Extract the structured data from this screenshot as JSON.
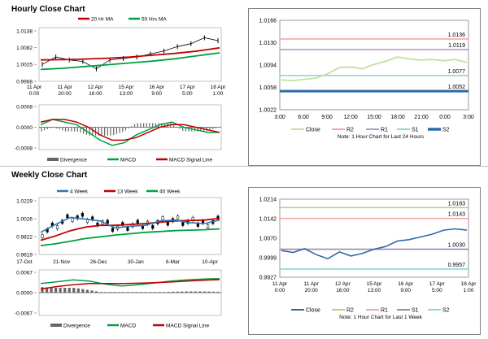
{
  "sections": {
    "hourly_title": "Hourly Close Chart",
    "weekly_title": "Weekly Close Chart"
  },
  "colors": {
    "ma_short": "#c00000",
    "ma_mid": "#00a040",
    "blue": "#2e75b6",
    "close_line": "#c4dfa0",
    "r2": "#f4a6a6",
    "r1": "#b49ac8",
    "s1": "#8fd6d6",
    "s2": "#2e6aa6",
    "divergence": "#666666",
    "macd": "#00a040",
    "signal": "#c00000",
    "weekly_close": "#2e6aa6",
    "weekly_r2": "#a8d878",
    "weekly_r1": "#f4a6a6",
    "weekly_s1": "#9a86b4",
    "weekly_s2": "#8fd6d6"
  },
  "notes": {
    "hourly_pivot": "Note: 1 Hour Chart for Last 24 Hours",
    "weekly_pivot": "Note: 1 Hour Chart for Last 1 Week"
  },
  "chart_data": [
    {
      "id": "hourly_price",
      "type": "line",
      "series": [
        {
          "name": "20 Hr MA",
          "color": "#c00000",
          "values": [
            1.004,
            1.0041,
            1.0043,
            1.0046,
            1.005,
            1.0056,
            1.0062,
            1.007,
            1.0081
          ]
        },
        {
          "name": "50 Hrs MA",
          "color": "#00a040",
          "values": [
            1.0008,
            1.0012,
            1.0018,
            1.0024,
            1.003,
            1.0036,
            1.0044,
            1.0054,
            1.0064
          ]
        },
        {
          "name": "",
          "color": "#000000",
          "values": [
            1.0025,
            1.005,
            1.004,
            1.0035,
            1.001,
            1.004,
            1.0045,
            1.005,
            1.006,
            1.007,
            1.0085,
            1.0095,
            1.0115,
            1.0105
          ]
        }
      ],
      "x_ticks": [
        "11 Apr\n0:00",
        "11 Apr\n20:00",
        "12 Apr\n16:00",
        "15 Apr\n13:00",
        "16 Apr\n9:00",
        "17 Apr\n5:00",
        "18 Apr\n1:00"
      ],
      "y_ticks": [
        "0.9968",
        "1.0025",
        "1.0082",
        "1.0138"
      ],
      "ylim": [
        0.9968,
        1.0138
      ]
    },
    {
      "id": "hourly_macd",
      "type": "line",
      "series": [
        {
          "name": "Divergence",
          "color": "#666666"
        },
        {
          "name": "MACD",
          "color": "#00a040",
          "values": [
            0.0001,
            0.0003,
            0.0002,
            0.0001,
            -0.0002,
            -0.0005,
            -0.0007,
            -0.0006,
            -0.0003,
            -0.0001,
            0.0001,
            0.0002,
            0.0,
            -0.0001,
            -0.0002,
            -0.0002
          ]
        },
        {
          "name": "MACD Signal Line",
          "color": "#c00000",
          "values": [
            0.0002,
            0.0003,
            0.0003,
            0.0002,
            0.0,
            -0.0003,
            -0.0005,
            -0.0005,
            -0.0004,
            -0.0002,
            0.0,
            0.0001,
            0.0001,
            0.0,
            -0.0001,
            -0.0002
          ]
        }
      ],
      "y_ticks": [
        "-0.0008",
        "0.0000",
        "0.0008"
      ],
      "ylim": [
        -0.0008,
        0.0008
      ]
    },
    {
      "id": "hourly_pivot",
      "type": "line",
      "series": [
        {
          "name": "Close",
          "color": "#c4dfa0",
          "values": [
            1.007,
            1.0069,
            1.0071,
            1.0073,
            1.008,
            1.009,
            1.0091,
            1.0088,
            1.0095,
            1.01,
            1.0107,
            1.0104,
            1.0102,
            1.0103,
            1.0101,
            1.0103,
            1.0098
          ]
        },
        {
          "name": "R2",
          "color": "#f4a6a6",
          "level": 1.0136
        },
        {
          "name": "R1",
          "color": "#b49ac8",
          "level": 1.0119
        },
        {
          "name": "S1",
          "color": "#8fd6d6",
          "level": 1.0077
        },
        {
          "name": "S2",
          "color": "#2e6aa6",
          "level": 1.0052
        }
      ],
      "level_labels": [
        "1.0136",
        "1.0119",
        "1.0077",
        "1.0052"
      ],
      "x_ticks": [
        "3:00",
        "6:00",
        "9:00",
        "12:00",
        "15:00",
        "18:00",
        "21:00",
        "0:00",
        "3:00"
      ],
      "y_ticks": [
        "1.0022",
        "1.0058",
        "1.0094",
        "1.0130",
        "1.0166"
      ],
      "ylim": [
        1.0022,
        1.0166
      ]
    },
    {
      "id": "weekly_price",
      "type": "line",
      "series": [
        {
          "name": "4 Week",
          "color": "#2e75b6",
          "values": [
            0.987,
            0.996,
            1.004,
            1.002,
            1.0,
            0.992,
            0.994,
            0.995,
            1.0,
            1.001,
            0.998,
            0.997,
            1.001
          ]
        },
        {
          "name": "13 Week",
          "color": "#c00000",
          "values": [
            0.978,
            0.983,
            0.989,
            0.993,
            0.995,
            0.995,
            0.996,
            0.997,
            0.9985,
            1.0,
            1.0005,
            1.001,
            1.003
          ]
        },
        {
          "name": "40 Week",
          "color": "#00a040",
          "values": [
            0.972,
            0.974,
            0.977,
            0.98,
            0.982,
            0.984,
            0.9855,
            0.987,
            0.988,
            0.989,
            0.9895,
            0.99,
            0.991
          ]
        }
      ],
      "x_ticks": [
        "17-Oct",
        "21-Nov",
        "26-Dec",
        "30-Jan",
        "6-Mar",
        "10-Apr"
      ],
      "y_ticks": [
        "0.9619",
        "0.9822",
        "1.0026",
        "1.0229"
      ],
      "ylim": [
        0.9619,
        1.0229
      ]
    },
    {
      "id": "weekly_macd",
      "type": "line",
      "series": [
        {
          "name": "Divergence",
          "color": "#666666"
        },
        {
          "name": "MACD",
          "color": "#00a040",
          "values": [
            0.003,
            0.0036,
            0.0042,
            0.0038,
            0.0028,
            0.0022,
            0.0026,
            0.0032,
            0.0038,
            0.0042,
            0.0045,
            0.0046
          ]
        },
        {
          "name": "MACD Signal Line",
          "color": "#c00000",
          "values": [
            0.0012,
            0.002,
            0.0026,
            0.003,
            0.003,
            0.003,
            0.0031,
            0.0033,
            0.0035,
            0.0038,
            0.0041,
            0.0043
          ]
        }
      ],
      "y_ticks": [
        "-0.0067",
        "0.0000",
        "0.0067"
      ],
      "ylim": [
        -0.0067,
        0.0067
      ]
    },
    {
      "id": "weekly_pivot",
      "type": "line",
      "series": [
        {
          "name": "Close",
          "color": "#2e6aa6",
          "values": [
            1.0025,
            1.0018,
            1.0032,
            1.001,
            0.9995,
            1.002,
            1.0005,
            1.0015,
            1.003,
            1.004,
            1.006,
            1.0065,
            1.0075,
            1.0085,
            1.01,
            1.0105,
            1.01
          ]
        },
        {
          "name": "R2",
          "color": "#a8d878",
          "level": 1.0183
        },
        {
          "name": "R1",
          "color": "#f4a6a6",
          "level": 1.0143
        },
        {
          "name": "S1",
          "color": "#9a86b4",
          "level": 1.003
        },
        {
          "name": "S2",
          "color": "#8fd6d6",
          "level": 0.9957
        }
      ],
      "level_labels": [
        "1.0183",
        "1.0143",
        "1.0030",
        "0.9957"
      ],
      "x_ticks": [
        "11 Apr\n0:00",
        "11 Apr\n20:00",
        "12 Apr\n16:00",
        "15 Apr\n13:00",
        "16 Apr\n9:00",
        "17 Apr\n5:00",
        "18 Apr\n1:00"
      ],
      "y_ticks": [
        "0.9927",
        "0.9999",
        "1.0070",
        "1.0142",
        "1.0214"
      ],
      "ylim": [
        0.9927,
        1.0214
      ]
    }
  ]
}
